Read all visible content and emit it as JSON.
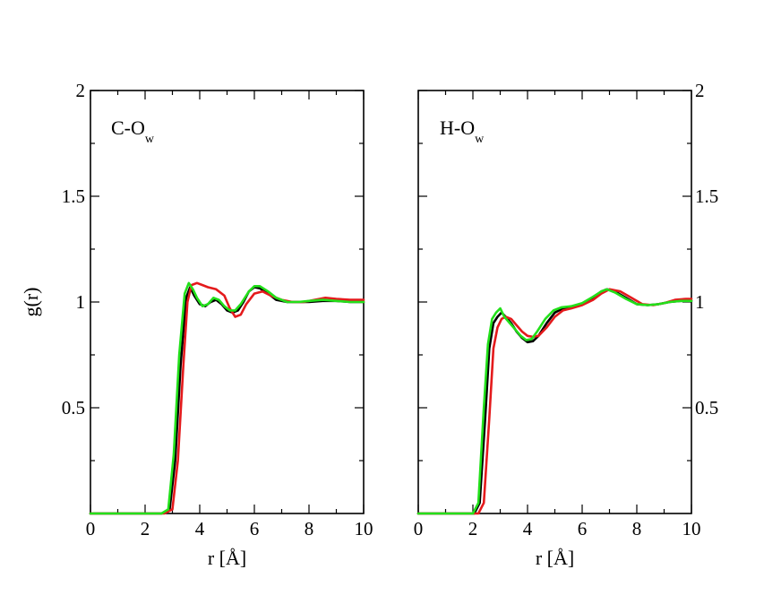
{
  "chart_data": [
    {
      "type": "line",
      "annotation_main": "C-O",
      "annotation_sub": "w",
      "xlabel": "r [Å]",
      "ylabel": "g(r)",
      "xlim": [
        0,
        10
      ],
      "ylim": [
        0,
        2
      ],
      "x_ticks": [
        "0",
        "2",
        "4",
        "6",
        "8",
        "10"
      ],
      "y_ticks": [
        "0.5",
        "1",
        "1.5",
        "2"
      ],
      "y_tick_side": "left",
      "grid": false,
      "series": [
        {
          "color": "#000000",
          "points": [
            [
              0,
              0
            ],
            [
              2.6,
              0
            ],
            [
              2.9,
              0.02
            ],
            [
              3.1,
              0.25
            ],
            [
              3.3,
              0.7
            ],
            [
              3.5,
              1.02
            ],
            [
              3.65,
              1.07
            ],
            [
              3.8,
              1.03
            ],
            [
              4.0,
              0.99
            ],
            [
              4.2,
              0.98
            ],
            [
              4.4,
              1.0
            ],
            [
              4.6,
              1.01
            ],
            [
              4.8,
              0.99
            ],
            [
              5.0,
              0.96
            ],
            [
              5.2,
              0.95
            ],
            [
              5.4,
              0.96
            ],
            [
              5.6,
              1.0
            ],
            [
              5.8,
              1.05
            ],
            [
              6.0,
              1.07
            ],
            [
              6.2,
              1.065
            ],
            [
              6.5,
              1.04
            ],
            [
              6.8,
              1.01
            ],
            [
              7.2,
              1.0
            ],
            [
              7.6,
              1.0
            ],
            [
              8.0,
              1.0
            ],
            [
              8.5,
              1.005
            ],
            [
              9.0,
              1.005
            ],
            [
              9.5,
              1.0
            ],
            [
              10,
              1.0
            ]
          ]
        },
        {
          "color": "#e41a1c",
          "points": [
            [
              0,
              0
            ],
            [
              2.7,
              0
            ],
            [
              3.0,
              0.02
            ],
            [
              3.2,
              0.25
            ],
            [
              3.4,
              0.7
            ],
            [
              3.55,
              1.0
            ],
            [
              3.7,
              1.08
            ],
            [
              3.9,
              1.09
            ],
            [
              4.1,
              1.08
            ],
            [
              4.3,
              1.07
            ],
            [
              4.6,
              1.06
            ],
            [
              4.9,
              1.03
            ],
            [
              5.1,
              0.97
            ],
            [
              5.3,
              0.93
            ],
            [
              5.5,
              0.94
            ],
            [
              5.7,
              0.99
            ],
            [
              6.0,
              1.04
            ],
            [
              6.3,
              1.05
            ],
            [
              6.6,
              1.03
            ],
            [
              7.0,
              1.01
            ],
            [
              7.4,
              1.0
            ],
            [
              7.8,
              1.0
            ],
            [
              8.2,
              1.01
            ],
            [
              8.6,
              1.02
            ],
            [
              9.0,
              1.015
            ],
            [
              9.5,
              1.01
            ],
            [
              10,
              1.01
            ]
          ]
        },
        {
          "color": "#22e01a",
          "points": [
            [
              0,
              0
            ],
            [
              2.6,
              0
            ],
            [
              2.85,
              0.02
            ],
            [
              3.05,
              0.28
            ],
            [
              3.25,
              0.75
            ],
            [
              3.45,
              1.04
            ],
            [
              3.6,
              1.09
            ],
            [
              3.75,
              1.06
            ],
            [
              3.9,
              1.02
            ],
            [
              4.1,
              0.98
            ],
            [
              4.3,
              0.99
            ],
            [
              4.5,
              1.02
            ],
            [
              4.7,
              1.01
            ],
            [
              4.9,
              0.98
            ],
            [
              5.1,
              0.96
            ],
            [
              5.3,
              0.96
            ],
            [
              5.5,
              0.99
            ],
            [
              5.8,
              1.05
            ],
            [
              6.0,
              1.075
            ],
            [
              6.2,
              1.075
            ],
            [
              6.5,
              1.05
            ],
            [
              6.8,
              1.02
            ],
            [
              7.2,
              1.0
            ],
            [
              7.6,
              1.0
            ],
            [
              8.0,
              1.005
            ],
            [
              8.5,
              1.01
            ],
            [
              9.0,
              1.005
            ],
            [
              9.5,
              1.0
            ],
            [
              10,
              1.0
            ]
          ]
        }
      ]
    },
    {
      "type": "line",
      "annotation_main": "H-O",
      "annotation_sub": "w",
      "xlabel": "r [Å]",
      "ylabel": "",
      "xlim": [
        0,
        10
      ],
      "ylim": [
        0,
        2
      ],
      "x_ticks": [
        "0",
        "2",
        "4",
        "6",
        "8",
        "10"
      ],
      "y_ticks": [
        "0.5",
        "1",
        "1.5",
        "2"
      ],
      "y_tick_side": "right",
      "grid": false,
      "series": [
        {
          "color": "#000000",
          "points": [
            [
              0,
              0
            ],
            [
              2.05,
              0
            ],
            [
              2.25,
              0.05
            ],
            [
              2.45,
              0.45
            ],
            [
              2.6,
              0.78
            ],
            [
              2.75,
              0.9
            ],
            [
              2.9,
              0.93
            ],
            [
              3.05,
              0.95
            ],
            [
              3.2,
              0.93
            ],
            [
              3.4,
              0.9
            ],
            [
              3.6,
              0.86
            ],
            [
              3.8,
              0.83
            ],
            [
              4.0,
              0.81
            ],
            [
              4.2,
              0.815
            ],
            [
              4.4,
              0.84
            ],
            [
              4.7,
              0.9
            ],
            [
              5.0,
              0.95
            ],
            [
              5.3,
              0.97
            ],
            [
              5.6,
              0.975
            ],
            [
              6.0,
              0.99
            ],
            [
              6.4,
              1.02
            ],
            [
              6.7,
              1.05
            ],
            [
              6.9,
              1.06
            ],
            [
              7.2,
              1.05
            ],
            [
              7.6,
              1.02
            ],
            [
              8.0,
              0.99
            ],
            [
              8.4,
              0.985
            ],
            [
              8.8,
              0.99
            ],
            [
              9.2,
              1.0
            ],
            [
              9.6,
              1.005
            ],
            [
              10,
              1.005
            ]
          ]
        },
        {
          "color": "#e41a1c",
          "points": [
            [
              0,
              0
            ],
            [
              2.2,
              0
            ],
            [
              2.4,
              0.05
            ],
            [
              2.6,
              0.45
            ],
            [
              2.75,
              0.78
            ],
            [
              2.9,
              0.88
            ],
            [
              3.05,
              0.92
            ],
            [
              3.2,
              0.93
            ],
            [
              3.4,
              0.92
            ],
            [
              3.6,
              0.89
            ],
            [
              3.8,
              0.86
            ],
            [
              4.0,
              0.84
            ],
            [
              4.2,
              0.835
            ],
            [
              4.4,
              0.84
            ],
            [
              4.7,
              0.88
            ],
            [
              5.0,
              0.93
            ],
            [
              5.3,
              0.96
            ],
            [
              5.6,
              0.97
            ],
            [
              6.0,
              0.985
            ],
            [
              6.4,
              1.01
            ],
            [
              6.7,
              1.04
            ],
            [
              7.0,
              1.06
            ],
            [
              7.4,
              1.05
            ],
            [
              7.8,
              1.02
            ],
            [
              8.2,
              0.99
            ],
            [
              8.6,
              0.985
            ],
            [
              9.0,
              0.995
            ],
            [
              9.4,
              1.01
            ],
            [
              9.8,
              1.015
            ],
            [
              10,
              1.015
            ]
          ]
        },
        {
          "color": "#22e01a",
          "points": [
            [
              0,
              0
            ],
            [
              2.0,
              0
            ],
            [
              2.2,
              0.05
            ],
            [
              2.4,
              0.5
            ],
            [
              2.55,
              0.8
            ],
            [
              2.7,
              0.92
            ],
            [
              2.85,
              0.95
            ],
            [
              3.0,
              0.97
            ],
            [
              3.15,
              0.93
            ],
            [
              3.35,
              0.9
            ],
            [
              3.55,
              0.87
            ],
            [
              3.75,
              0.84
            ],
            [
              3.95,
              0.82
            ],
            [
              4.15,
              0.825
            ],
            [
              4.35,
              0.86
            ],
            [
              4.65,
              0.92
            ],
            [
              4.95,
              0.96
            ],
            [
              5.25,
              0.975
            ],
            [
              5.6,
              0.98
            ],
            [
              6.0,
              0.995
            ],
            [
              6.4,
              1.025
            ],
            [
              6.7,
              1.05
            ],
            [
              6.9,
              1.06
            ],
            [
              7.2,
              1.045
            ],
            [
              7.6,
              1.015
            ],
            [
              8.0,
              0.99
            ],
            [
              8.4,
              0.985
            ],
            [
              8.8,
              0.99
            ],
            [
              9.2,
              1.0
            ],
            [
              9.6,
              1.005
            ],
            [
              10,
              1.005
            ]
          ]
        }
      ]
    }
  ]
}
